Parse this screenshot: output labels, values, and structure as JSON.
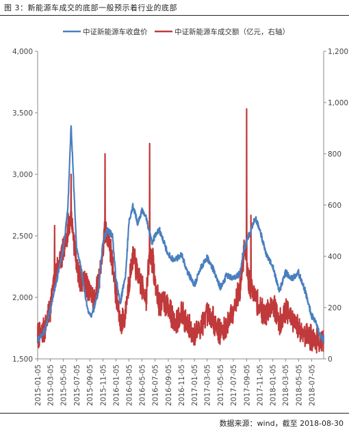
{
  "header": {
    "title": "图 3：新能源车成交的底部一般预示着行业的底部"
  },
  "footer": {
    "source": "数据来源：wind，截至 2018-08-30"
  },
  "colors": {
    "series_index": "#4a7fbf",
    "series_turnover": "#c0393b",
    "axis": "#888888"
  },
  "chart_data": {
    "type": "line",
    "x_tick_labels": [
      "2015-01-05",
      "2015-03-05",
      "2015-05-05",
      "2015-07-05",
      "2015-09-05",
      "2015-11-05",
      "2016-01-05",
      "2016-03-05",
      "2016-05-05",
      "2016-07-05",
      "2016-09-05",
      "2016-11-05",
      "2017-01-05",
      "2017-03-05",
      "2017-05-05",
      "2017-07-05",
      "2017-09-05",
      "2017-11-05",
      "2018-01-05",
      "2018-03-05",
      "2018-05-05",
      "2018-07-05"
    ],
    "y_left": {
      "min": 1500,
      "max": 4000,
      "ticks": [
        "1,500",
        "2,000",
        "2,500",
        "3,000",
        "3,500",
        "4,000"
      ]
    },
    "y_right": {
      "min": 0,
      "max": 1200,
      "ticks": [
        "0",
        "200",
        "400",
        "600",
        "800",
        "1,000",
        "1,200"
      ]
    },
    "grid": false,
    "legend_position": "top",
    "series": [
      {
        "name": "中证新能源车收盘价",
        "axis": "left",
        "points": [
          [
            "2015-01-05",
            1650
          ],
          [
            "2015-02-05",
            1720
          ],
          [
            "2015-03-05",
            1900
          ],
          [
            "2015-04-05",
            2150
          ],
          [
            "2015-05-05",
            2400
          ],
          [
            "2015-05-25",
            2700
          ],
          [
            "2015-06-10",
            3400
          ],
          [
            "2015-07-05",
            2400
          ],
          [
            "2015-07-25",
            2250
          ],
          [
            "2015-08-25",
            1900
          ],
          [
            "2015-09-15",
            1850
          ],
          [
            "2015-10-15",
            2050
          ],
          [
            "2015-11-05",
            2450
          ],
          [
            "2015-11-25",
            2550
          ],
          [
            "2015-12-20",
            2500
          ],
          [
            "2016-01-05",
            2150
          ],
          [
            "2016-01-25",
            1950
          ],
          [
            "2016-02-20",
            2200
          ],
          [
            "2016-03-05",
            2600
          ],
          [
            "2016-03-25",
            2750
          ],
          [
            "2016-04-15",
            2600
          ],
          [
            "2016-05-05",
            2700
          ],
          [
            "2016-05-25",
            2650
          ],
          [
            "2016-06-20",
            2450
          ],
          [
            "2016-07-05",
            2500
          ],
          [
            "2016-07-25",
            2550
          ],
          [
            "2016-08-15",
            2450
          ],
          [
            "2016-09-05",
            2350
          ],
          [
            "2016-10-05",
            2300
          ],
          [
            "2016-11-05",
            2350
          ],
          [
            "2016-12-05",
            2200
          ],
          [
            "2017-01-05",
            2100
          ],
          [
            "2017-02-05",
            2250
          ],
          [
            "2017-03-05",
            2320
          ],
          [
            "2017-04-05",
            2220
          ],
          [
            "2017-05-05",
            2080
          ],
          [
            "2017-06-05",
            2180
          ],
          [
            "2017-07-05",
            2150
          ],
          [
            "2017-08-05",
            2200
          ],
          [
            "2017-08-25",
            2400
          ],
          [
            "2017-09-25",
            2550
          ],
          [
            "2017-10-15",
            2650
          ],
          [
            "2017-11-05",
            2550
          ],
          [
            "2017-12-05",
            2350
          ],
          [
            "2018-01-05",
            2250
          ],
          [
            "2018-02-05",
            2050
          ],
          [
            "2018-03-05",
            2200
          ],
          [
            "2018-04-05",
            2150
          ],
          [
            "2018-05-05",
            2200
          ],
          [
            "2018-06-05",
            2050
          ],
          [
            "2018-07-05",
            1850
          ],
          [
            "2018-07-25",
            1800
          ],
          [
            "2018-08-10",
            1700
          ],
          [
            "2018-08-30",
            1650
          ]
        ]
      },
      {
        "name": "中证新能源车成交额（亿元，右轴）",
        "axis": "right",
        "points": [
          [
            "2015-01-05",
            90
          ],
          [
            "2015-02-05",
            110
          ],
          [
            "2015-03-05",
            200
          ],
          [
            "2015-03-25",
            320
          ],
          [
            "2015-04-15",
            380
          ],
          [
            "2015-05-05",
            420
          ],
          [
            "2015-05-25",
            500
          ],
          [
            "2015-06-10",
            560
          ],
          [
            "2015-06-25",
            450
          ],
          [
            "2015-07-15",
            320
          ],
          [
            "2015-08-15",
            300
          ],
          [
            "2015-09-05",
            260
          ],
          [
            "2015-09-25",
            230
          ],
          [
            "2015-10-15",
            300
          ],
          [
            "2015-11-05",
            420
          ],
          [
            "2015-11-15",
            500
          ],
          [
            "2015-12-05",
            460
          ],
          [
            "2015-12-25",
            340
          ],
          [
            "2016-01-05",
            250
          ],
          [
            "2016-01-25",
            140
          ],
          [
            "2016-02-15",
            160
          ],
          [
            "2016-03-05",
            300
          ],
          [
            "2016-03-25",
            400
          ],
          [
            "2016-04-15",
            330
          ],
          [
            "2016-05-05",
            280
          ],
          [
            "2016-05-25",
            240
          ],
          [
            "2016-06-10",
            410
          ],
          [
            "2016-06-25",
            380
          ],
          [
            "2016-07-05",
            300
          ],
          [
            "2016-07-25",
            210
          ],
          [
            "2016-08-15",
            230
          ],
          [
            "2016-09-05",
            200
          ],
          [
            "2016-10-05",
            140
          ],
          [
            "2016-11-05",
            180
          ],
          [
            "2016-12-05",
            130
          ],
          [
            "2017-01-05",
            90
          ],
          [
            "2017-02-05",
            130
          ],
          [
            "2017-03-05",
            170
          ],
          [
            "2017-04-05",
            150
          ],
          [
            "2017-05-05",
            100
          ],
          [
            "2017-06-05",
            130
          ],
          [
            "2017-07-05",
            200
          ],
          [
            "2017-08-05",
            270
          ],
          [
            "2017-08-25",
            430
          ],
          [
            "2017-09-15",
            300
          ],
          [
            "2017-10-15",
            240
          ],
          [
            "2017-11-05",
            200
          ],
          [
            "2017-12-05",
            170
          ],
          [
            "2018-01-05",
            220
          ],
          [
            "2018-02-05",
            140
          ],
          [
            "2018-03-05",
            190
          ],
          [
            "2018-04-05",
            150
          ],
          [
            "2018-05-05",
            120
          ],
          [
            "2018-06-05",
            100
          ],
          [
            "2018-07-05",
            80
          ],
          [
            "2018-08-05",
            70
          ],
          [
            "2018-08-30",
            55
          ]
        ],
        "spikes": [
          [
            "2015-06-10",
            720
          ],
          [
            "2015-11-15",
            800
          ],
          [
            "2016-06-10",
            840
          ],
          [
            "2016-01-05",
            310
          ],
          [
            "2017-09-05",
            975
          ],
          [
            "2015-03-25",
            520
          ],
          [
            "2017-09-25",
            560
          ]
        ]
      }
    ]
  }
}
